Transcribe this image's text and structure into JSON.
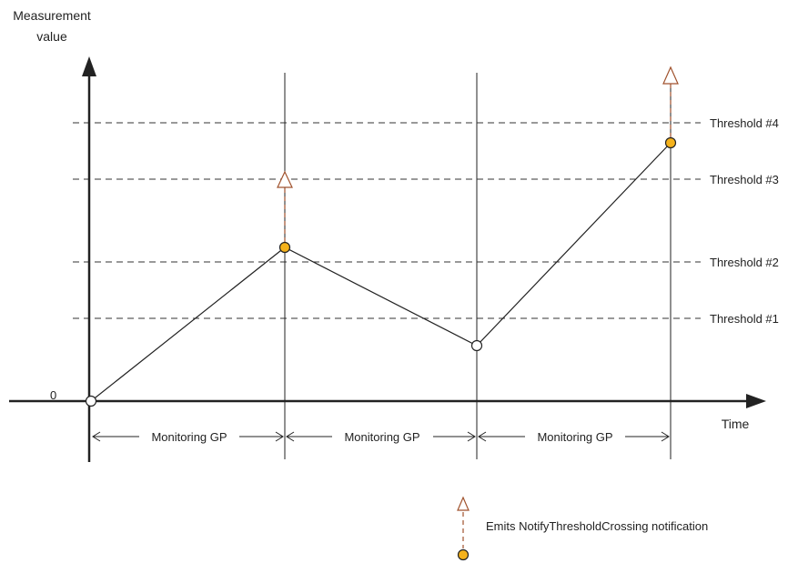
{
  "axes": {
    "y_label_line1": "Measurement",
    "y_label_line2": "value",
    "x_label": "Time",
    "origin_label": "0"
  },
  "thresholds": [
    {
      "label": "Threshold #1"
    },
    {
      "label": "Threshold #2"
    },
    {
      "label": "Threshold #3"
    },
    {
      "label": "Threshold #4"
    }
  ],
  "intervals": [
    {
      "label": "Monitoring GP"
    },
    {
      "label": "Monitoring GP"
    },
    {
      "label": "Monitoring GP"
    }
  ],
  "points": [
    {
      "emits_notification": false
    },
    {
      "emits_notification": true
    },
    {
      "emits_notification": false
    },
    {
      "emits_notification": true
    }
  ],
  "legend": {
    "text": "Emits NotifyThresholdCrossing notification"
  },
  "colors": {
    "line": "#222222",
    "notification_point_fill": "#f5b21b",
    "notification_arrow": "#a0522d",
    "plain_point_fill": "#ffffff"
  }
}
